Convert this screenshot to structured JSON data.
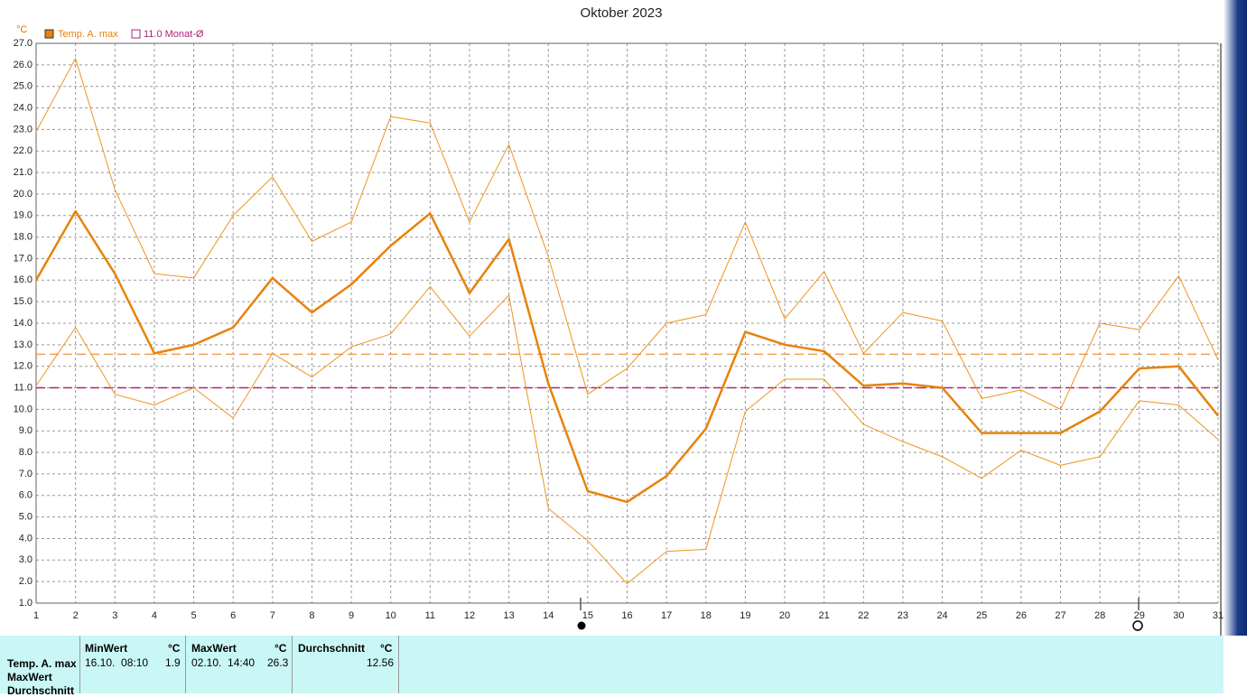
{
  "chart_data": {
    "type": "line",
    "title": "Oktober 2023",
    "y_unit": "°C",
    "categories": [
      "1",
      "2",
      "3",
      "4",
      "5",
      "6",
      "7",
      "8",
      "9",
      "10",
      "11",
      "12",
      "13",
      "14",
      "15",
      "16",
      "17",
      "18",
      "19",
      "20",
      "21",
      "22",
      "23",
      "24",
      "25",
      "26",
      "27",
      "28",
      "29",
      "30",
      "31"
    ],
    "series": [
      {
        "name": "Temp. A. max",
        "color": "#e8820c",
        "width": 2.5,
        "values": [
          16.0,
          19.2,
          16.3,
          12.6,
          13.0,
          13.8,
          16.1,
          14.5,
          15.8,
          17.6,
          19.1,
          15.4,
          17.9,
          11.2,
          6.2,
          5.7,
          6.9,
          9.1,
          13.6,
          13.0,
          12.7,
          11.1,
          11.2,
          11.0,
          8.9,
          8.9,
          8.9,
          9.9,
          11.9,
          12.0,
          9.7
        ]
      },
      {
        "color": "#ee9420",
        "width": 1,
        "values": [
          22.9,
          26.3,
          20.2,
          16.3,
          16.1,
          19.0,
          20.8,
          17.8,
          18.7,
          23.6,
          23.3,
          18.7,
          22.3,
          17.1,
          10.7,
          11.9,
          14.0,
          14.4,
          18.7,
          14.2,
          16.4,
          12.6,
          14.5,
          14.1,
          10.5,
          10.9,
          10.0,
          14.0,
          13.7,
          16.2,
          12.3
        ]
      },
      {
        "color": "#ee9420",
        "width": 1,
        "values": [
          11.1,
          13.8,
          10.7,
          10.2,
          11.0,
          9.6,
          12.6,
          11.5,
          12.9,
          13.5,
          15.7,
          13.4,
          15.3,
          5.4,
          3.9,
          1.9,
          3.4,
          3.5,
          9.9,
          11.4,
          11.4,
          9.3,
          8.5,
          7.8,
          6.8,
          8.1,
          7.4,
          7.8,
          10.4,
          10.2,
          8.6
        ]
      }
    ],
    "reference_lines": [
      {
        "value": 12.56,
        "color": "#f0a050"
      },
      {
        "value": 11.0,
        "color": "#b0207a",
        "name": "11.0 Monat-Ø"
      }
    ],
    "ylim": [
      1,
      27
    ],
    "yticks": [
      {
        "value": 1,
        "label": "1.0"
      },
      {
        "value": 2,
        "label": "2.0"
      },
      {
        "value": 3,
        "label": "3.0"
      },
      {
        "value": 4,
        "label": "4.0"
      },
      {
        "value": 5,
        "label": "5.0"
      },
      {
        "value": 6,
        "label": "6.0"
      },
      {
        "value": 7,
        "label": "7.0"
      },
      {
        "value": 8,
        "label": "8.0"
      },
      {
        "value": 9,
        "label": "9.0"
      },
      {
        "value": 10,
        "label": "10.0"
      },
      {
        "value": 11,
        "label": "11.0"
      },
      {
        "value": 12,
        "label": "12.0"
      },
      {
        "value": 13,
        "label": "13.0"
      },
      {
        "value": 14,
        "label": "14.0"
      },
      {
        "value": 15,
        "label": "15.0"
      },
      {
        "value": 16,
        "label": "16.0"
      },
      {
        "value": 17,
        "label": "17.0"
      },
      {
        "value": 18,
        "label": "18.0"
      },
      {
        "value": 19,
        "label": "19.0"
      },
      {
        "value": 20,
        "label": "20.0"
      },
      {
        "value": 21,
        "label": "21.0"
      },
      {
        "value": 22,
        "label": "22.0"
      },
      {
        "value": 23,
        "label": "23.0"
      },
      {
        "value": 24,
        "label": "24.0"
      },
      {
        "value": 25,
        "label": "25.0"
      },
      {
        "value": 26,
        "label": "26.0"
      },
      {
        "value": 27,
        "label": "27.0"
      }
    ],
    "grid": true
  },
  "table": {
    "row_labels": [
      "Temp. A. max",
      "MaxWert",
      "Durchschnitt"
    ],
    "min": {
      "header": "MinWert",
      "unit": "°C",
      "time": "16.10.  08:10",
      "value": 1.9
    },
    "max": {
      "header": "MaxWert",
      "unit": "°C",
      "time": "02.10.  14:40",
      "value": 26.3
    },
    "avg": {
      "header": "Durchschnitt",
      "unit": "°C",
      "value": 12.56
    }
  }
}
